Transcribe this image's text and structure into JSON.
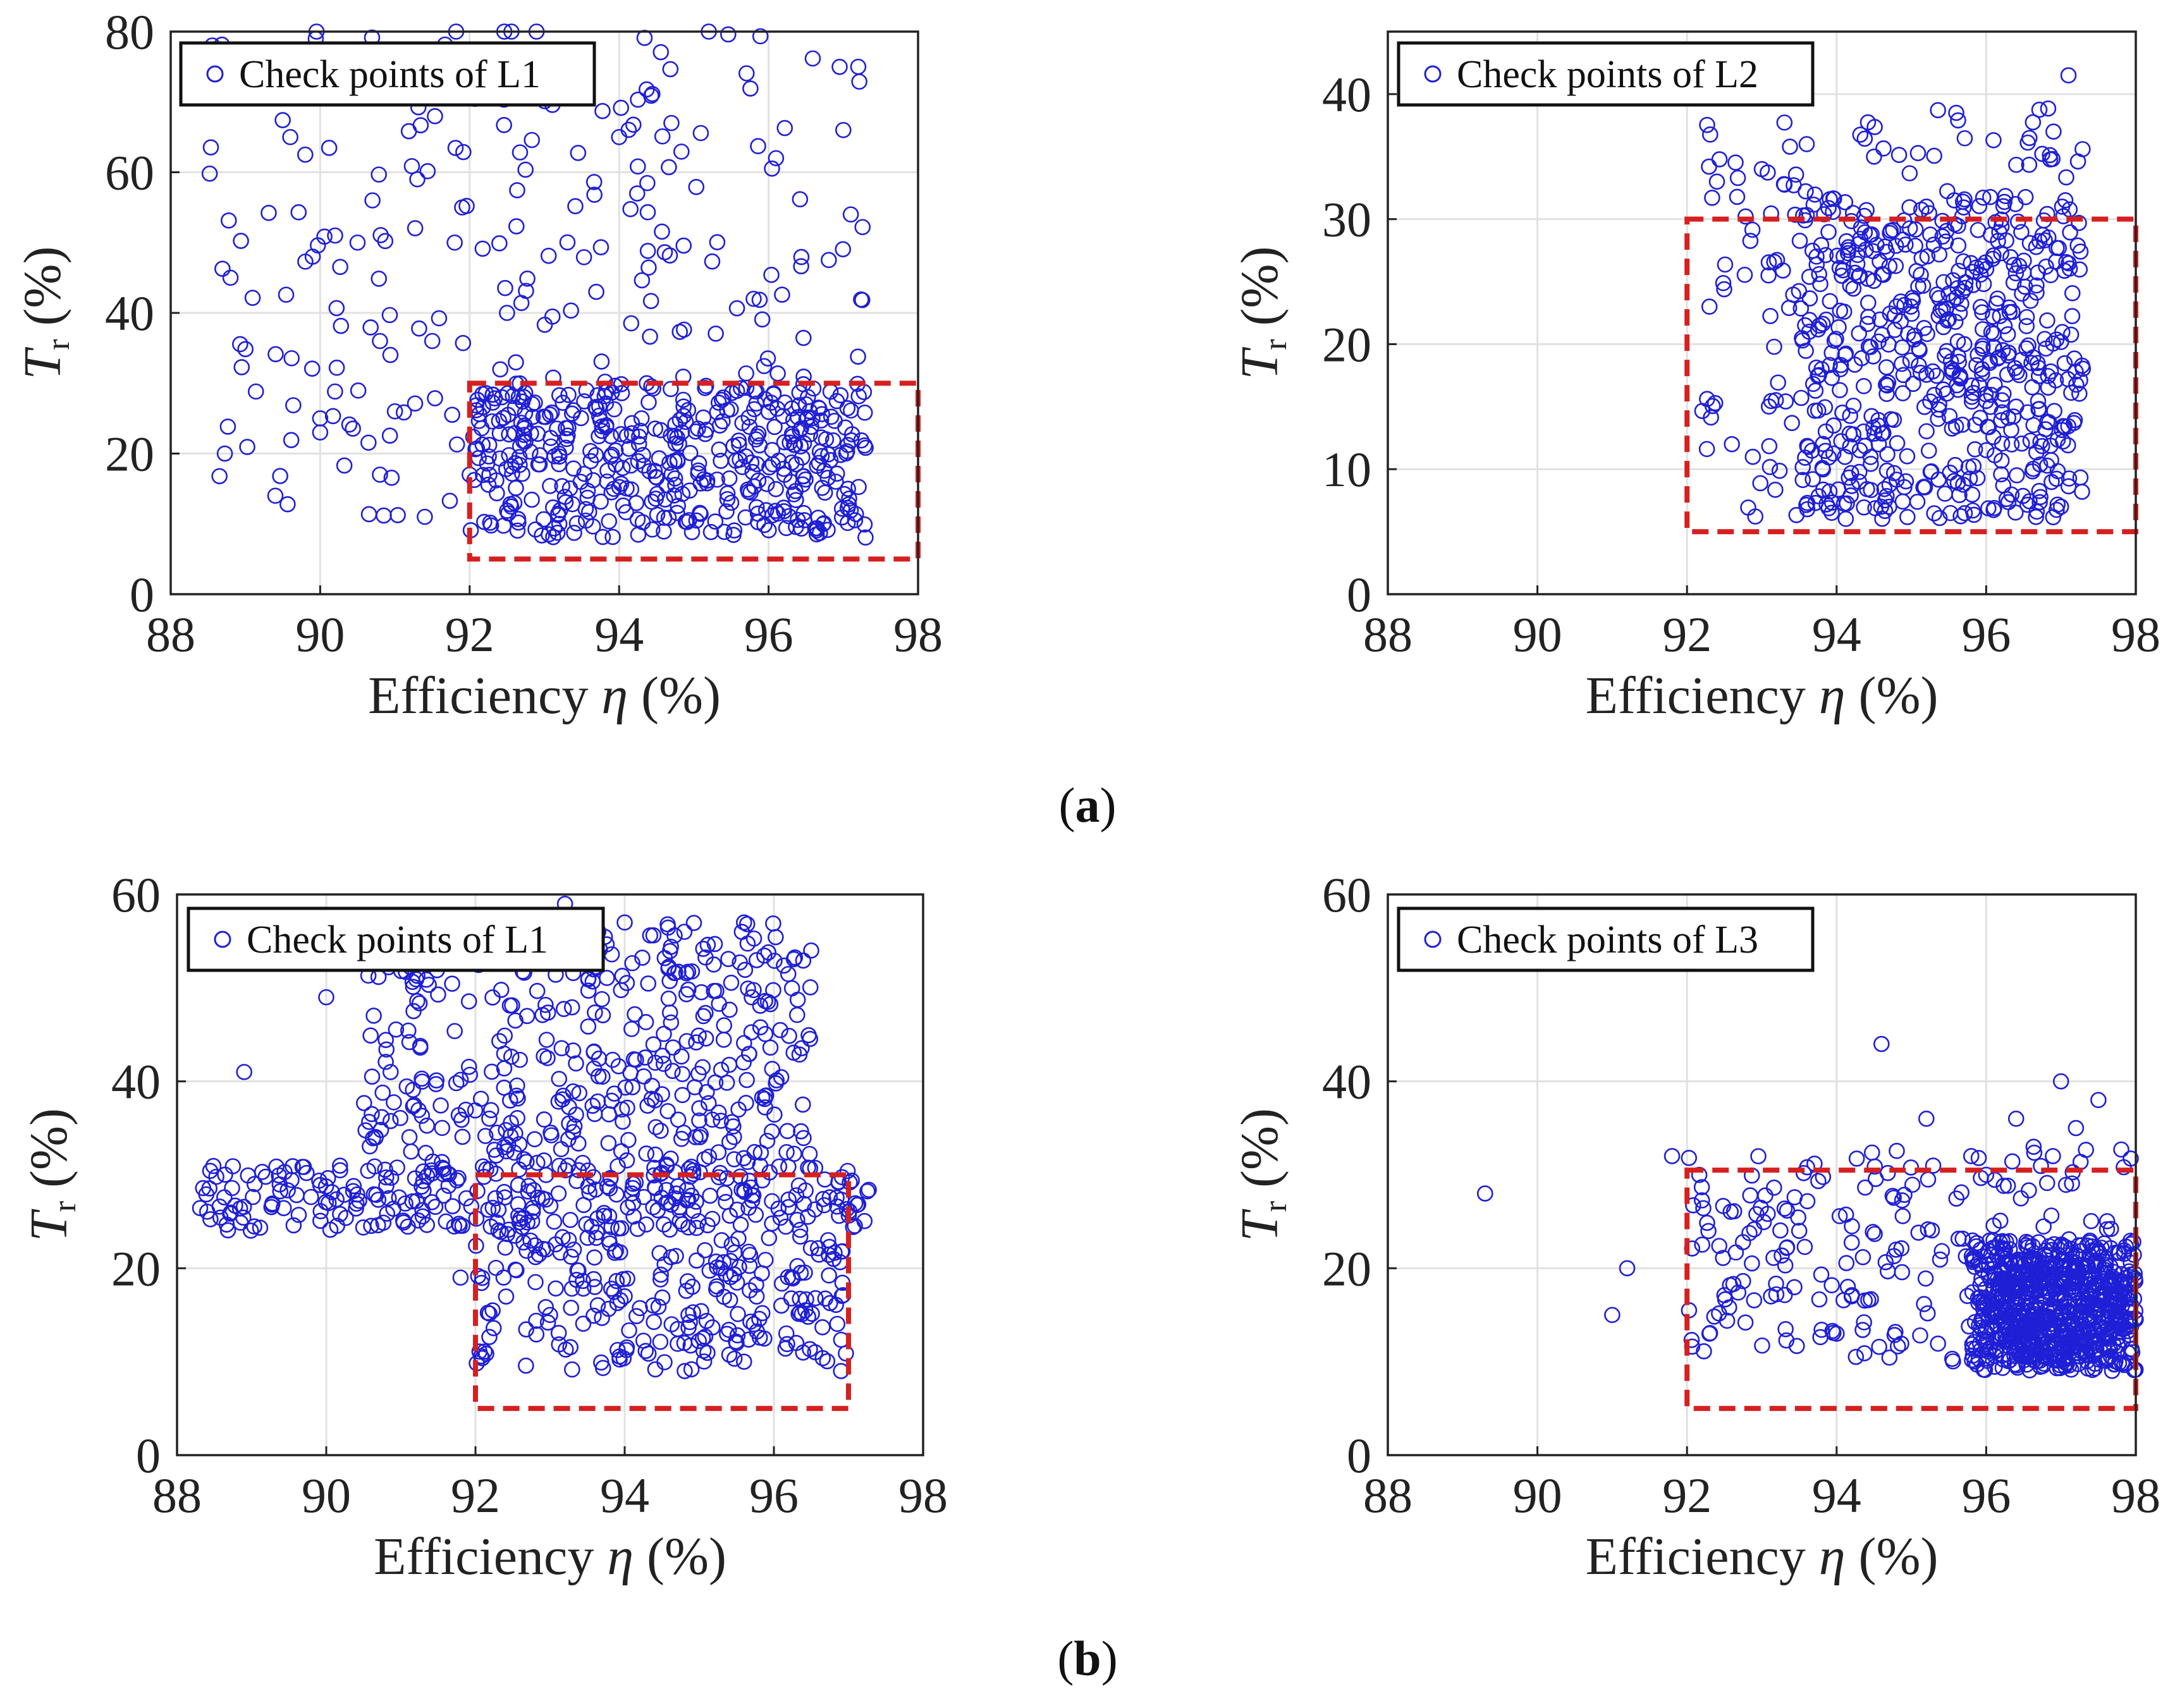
{
  "figure": {
    "panel_labels": [
      {
        "open": "(",
        "letter": "a",
        "close": ")"
      },
      {
        "open": "(",
        "letter": "b",
        "close": ")"
      }
    ]
  },
  "chart_data": [
    {
      "type": "scatter",
      "xlabel_main": "Efficiency ",
      "xlabel_symbol": "η",
      "xlabel_unit": " (%)",
      "ylabel_symbol": "T",
      "ylabel_sub": "r",
      "ylabel_unit": " (%)",
      "xlim": [
        88,
        98
      ],
      "ylim": [
        0,
        80
      ],
      "xticks": [
        88,
        90,
        92,
        94,
        96,
        98
      ],
      "yticks": [
        0,
        20,
        40,
        60,
        80
      ],
      "grid": true,
      "legend": {
        "label": "Check points of L1",
        "placement": "top-left"
      },
      "series_color": "#1f1fd6",
      "region": {
        "x": [
          92,
          98
        ],
        "y": [
          5,
          30
        ],
        "color": "#d62020"
      },
      "cloud": {
        "x_range": [
          88.5,
          97.3
        ],
        "y_range": [
          8,
          81
        ],
        "dense": {
          "x": [
            92,
            97.3
          ],
          "y": [
            8,
            30
          ]
        },
        "sparse": {
          "x": [
            88.5,
            97.3
          ],
          "y": [
            10,
            81
          ]
        }
      },
      "points": [
        [
          88.8,
          45
        ],
        [
          89.4,
          14
        ],
        [
          89.6,
          65
        ],
        [
          89.9,
          48
        ],
        [
          90,
          25
        ],
        [
          90,
          23
        ],
        [
          90.2,
          51
        ],
        [
          90.5,
          50
        ],
        [
          90.7,
          56
        ],
        [
          90.8,
          17
        ],
        [
          90.8,
          36
        ],
        [
          91,
          26
        ],
        [
          91.3,
          59
        ],
        [
          91.4,
          11
        ],
        [
          91.5,
          36
        ],
        [
          91.8,
          50
        ],
        [
          91.9,
          55
        ],
        [
          92,
          17
        ],
        [
          95.2,
          81
        ],
        [
          94.7,
          67
        ],
        [
          97,
          66
        ],
        [
          97.2,
          75
        ],
        [
          96.1,
          62
        ],
        [
          94,
          65
        ],
        [
          96.9,
          16
        ],
        [
          95.5,
          13
        ],
        [
          93.2,
          10
        ],
        [
          94.3,
          25
        ],
        [
          96.5,
          27
        ],
        [
          92.5,
          40
        ],
        [
          97.1,
          54
        ],
        [
          95.8,
          42
        ]
      ]
    },
    {
      "type": "scatter",
      "xlabel_main": "Efficiency ",
      "xlabel_symbol": "η",
      "xlabel_unit": " (%)",
      "ylabel_symbol": "T",
      "ylabel_sub": "r",
      "ylabel_unit": " (%)",
      "xlim": [
        88,
        98
      ],
      "ylim": [
        0,
        45
      ],
      "xticks": [
        88,
        90,
        92,
        94,
        96,
        98
      ],
      "yticks": [
        0,
        10,
        20,
        30,
        40
      ],
      "grid": true,
      "legend": {
        "label": "Check points of L2",
        "placement": "top-left"
      },
      "series_color": "#1f1fd6",
      "region": {
        "x": [
          92,
          98
        ],
        "y": [
          5,
          30
        ],
        "color": "#d62020"
      },
      "cloud": {
        "x_range": [
          92.2,
          97.3
        ],
        "y_range": [
          6,
          42
        ],
        "dense": {
          "x": [
            93.5,
            97.3
          ],
          "y": [
            6,
            32
          ]
        },
        "sparse": {
          "x": [
            92.2,
            97.3
          ],
          "y": [
            6,
            39
          ]
        }
      },
      "points": [
        [
          92.3,
          23
        ],
        [
          92.4,
          33
        ],
        [
          92.6,
          12
        ],
        [
          93,
          34
        ],
        [
          93.6,
          36
        ],
        [
          95.6,
          38.5
        ],
        [
          97.1,
          41.5
        ],
        [
          96.9,
          37
        ],
        [
          94.5,
          35
        ],
        [
          95.2,
          31
        ],
        [
          96,
          26
        ],
        [
          97,
          7
        ],
        [
          94.3,
          9
        ],
        [
          96.4,
          15
        ],
        [
          95.5,
          22
        ],
        [
          93.8,
          18
        ]
      ]
    },
    {
      "type": "scatter",
      "xlabel_main": "Efficiency ",
      "xlabel_symbol": "η",
      "xlabel_unit": " (%)",
      "ylabel_symbol": "T",
      "ylabel_sub": "r",
      "ylabel_unit": " (%)",
      "xlim": [
        88,
        98
      ],
      "ylim": [
        0,
        60
      ],
      "xticks": [
        88,
        90,
        92,
        94,
        96,
        98
      ],
      "yticks": [
        0,
        20,
        40,
        60
      ],
      "grid": true,
      "legend": {
        "label": "Check points of L1",
        "placement": "top-left"
      },
      "series_color": "#1f1fd6",
      "region": {
        "x": [
          92,
          97
        ],
        "y": [
          5,
          30
        ],
        "color": "#d62020"
      },
      "cloud": {
        "x_range": [
          88.3,
          97.3
        ],
        "y_range": [
          9,
          59
        ],
        "band": {
          "x": [
            88.3,
            97.3
          ],
          "y": [
            24,
            31
          ]
        },
        "dense": {
          "x": [
            90.5,
            96.5
          ],
          "y": [
            30,
            57
          ]
        },
        "sparse": {
          "x": [
            92,
            97
          ],
          "y": [
            9,
            24
          ]
        }
      },
      "points": [
        [
          88.9,
          41
        ],
        [
          90,
          49
        ],
        [
          93.2,
          59
        ],
        [
          94,
          57
        ],
        [
          94.8,
          56
        ],
        [
          95.6,
          57
        ],
        [
          96.5,
          54
        ],
        [
          95.5,
          12
        ],
        [
          94.8,
          12
        ],
        [
          96.1,
          16
        ],
        [
          96.9,
          9
        ],
        [
          96.3,
          12
        ],
        [
          95.6,
          10
        ],
        [
          93,
          15
        ],
        [
          93.6,
          18
        ],
        [
          91.8,
          19
        ],
        [
          96.8,
          21
        ],
        [
          95.3,
          23
        ],
        [
          94,
          17
        ]
      ]
    },
    {
      "type": "scatter",
      "xlabel_main": "Efficiency ",
      "xlabel_symbol": "η",
      "xlabel_unit": " (%)",
      "ylabel_symbol": "T",
      "ylabel_sub": "r",
      "ylabel_unit": " (%)",
      "xlim": [
        88,
        98
      ],
      "ylim": [
        0,
        60
      ],
      "xticks": [
        88,
        90,
        92,
        94,
        96,
        98
      ],
      "yticks": [
        0,
        20,
        40,
        60
      ],
      "grid": true,
      "legend": {
        "label": "Check points of L3",
        "placement": "top-left"
      },
      "series_color": "#1f1fd6",
      "region": {
        "x": [
          92,
          98
        ],
        "y": [
          5,
          30.5
        ],
        "color": "#d62020"
      },
      "cloud": {
        "x_range": [
          89.3,
          98
        ],
        "y_range": [
          9,
          45
        ],
        "dense": {
          "x": [
            95.8,
            98
          ],
          "y": [
            9,
            23
          ]
        },
        "sparse": {
          "x": [
            92,
            98
          ],
          "y": [
            10,
            33
          ]
        }
      },
      "points": [
        [
          89.3,
          28
        ],
        [
          91,
          15
        ],
        [
          91.2,
          20
        ],
        [
          91.8,
          32
        ],
        [
          94.6,
          44
        ],
        [
          97.5,
          38
        ],
        [
          97,
          40
        ],
        [
          96.4,
          36
        ],
        [
          95.2,
          36
        ],
        [
          93.5,
          24
        ],
        [
          94,
          13
        ],
        [
          92.3,
          13
        ],
        [
          96,
          30
        ],
        [
          97.2,
          35
        ],
        [
          95.8,
          32
        ]
      ]
    }
  ]
}
